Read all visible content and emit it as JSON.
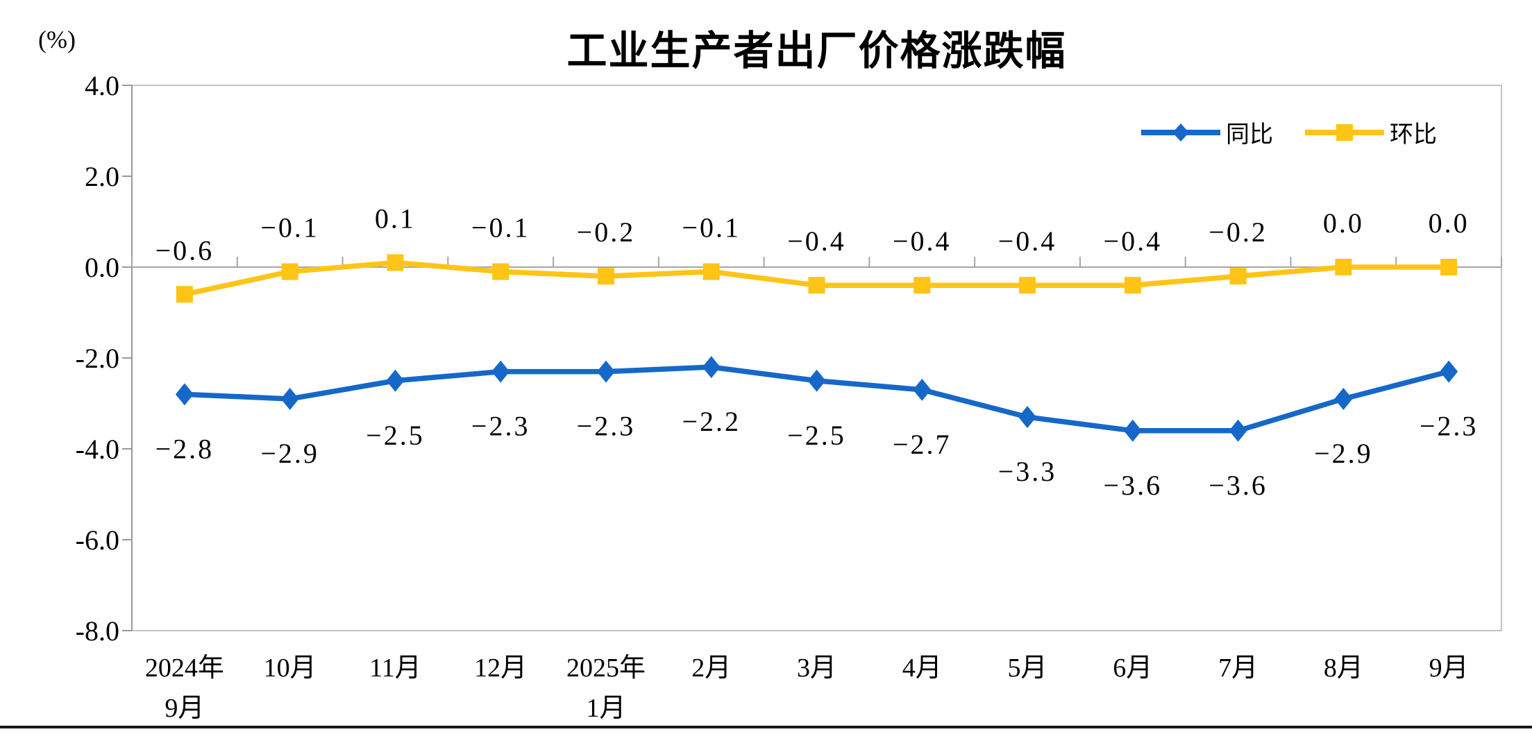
{
  "page": {
    "background": "#ffffff"
  },
  "chart_data": {
    "type": "line",
    "title": "工业生产者出厂价格涨跌幅",
    "unit_label": "(%)",
    "categories": [
      [
        "2024年",
        "9月"
      ],
      [
        "10月"
      ],
      [
        "11月"
      ],
      [
        "12月"
      ],
      [
        "2025年",
        "1月"
      ],
      [
        "2月"
      ],
      [
        "3月"
      ],
      [
        "4月"
      ],
      [
        "5月"
      ],
      [
        "6月"
      ],
      [
        "7月"
      ],
      [
        "8月"
      ],
      [
        "9月"
      ]
    ],
    "series": [
      {
        "name": "同比",
        "color": "#1568C8",
        "marker": "diamond",
        "label_position": "below",
        "values": [
          -2.8,
          -2.9,
          -2.5,
          -2.3,
          -2.3,
          -2.2,
          -2.5,
          -2.7,
          -3.3,
          -3.6,
          -3.6,
          -2.9,
          -2.3
        ]
      },
      {
        "name": "环比",
        "color": "#FFC416",
        "marker": "square",
        "label_position": "above",
        "values": [
          -0.6,
          -0.1,
          0.1,
          -0.1,
          -0.2,
          -0.1,
          -0.4,
          -0.4,
          -0.4,
          -0.4,
          -0.2,
          0.0,
          0.0
        ]
      }
    ],
    "y_axis": {
      "min": -8.0,
      "max": 4.0,
      "step": 2.0,
      "tick_labels": [
        "4.0",
        "2.0",
        "0.0",
        "-2.0",
        "-4.0",
        "-6.0",
        "-8.0"
      ]
    },
    "legend": {
      "position": "top-right",
      "entries": [
        "同比",
        "环比"
      ]
    },
    "grid": false,
    "axis_color": "#999999",
    "border_color": "#C3C3C3",
    "zero_line_color": "#A6A6A6",
    "ylim": [
      -8.0,
      4.0
    ]
  }
}
